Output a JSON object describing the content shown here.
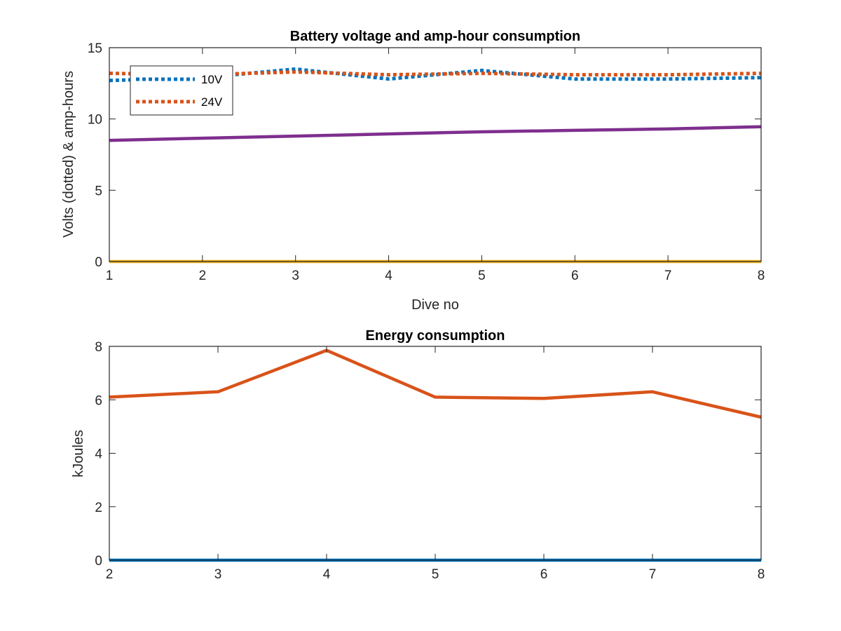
{
  "chart_data": [
    {
      "type": "line",
      "title": "Battery voltage and amp-hour consumption",
      "xlabel": "Dive no",
      "ylabel": "Volts (dotted) & amp-hours",
      "xlim": [
        1,
        8
      ],
      "ylim": [
        0,
        15
      ],
      "xticks": [
        1,
        2,
        3,
        4,
        5,
        6,
        7,
        8
      ],
      "yticks": [
        0,
        5,
        10,
        15
      ],
      "grid": false,
      "legend_position": "top-left",
      "x": [
        1,
        2,
        3,
        4,
        5,
        6,
        7,
        8
      ],
      "series": [
        {
          "name": "10V",
          "style": "dotted",
          "color": "#0072BD",
          "values": [
            12.7,
            12.9,
            13.5,
            12.8,
            13.4,
            12.8,
            12.8,
            12.9
          ]
        },
        {
          "name": "24V",
          "style": "dotted",
          "color": "#D95319",
          "values": [
            13.2,
            13.1,
            13.3,
            13.1,
            13.2,
            13.1,
            13.1,
            13.2
          ]
        },
        {
          "style": "solid",
          "color": "#7E2F8E",
          "values": [
            8.5,
            8.65,
            8.8,
            8.95,
            9.1,
            9.2,
            9.3,
            9.45
          ]
        },
        {
          "style": "solid",
          "color": "#EDB120",
          "values": [
            0,
            0,
            0,
            0,
            0,
            0,
            0,
            0
          ]
        }
      ]
    },
    {
      "type": "line",
      "title": "Energy consumption",
      "xlabel": "",
      "ylabel": "kJoules",
      "xlim": [
        2,
        8
      ],
      "ylim": [
        0,
        8
      ],
      "xticks": [
        2,
        3,
        4,
        5,
        6,
        7,
        8
      ],
      "yticks": [
        0,
        2,
        4,
        6,
        8
      ],
      "grid": false,
      "x": [
        2,
        3,
        4,
        5,
        6,
        7,
        8
      ],
      "series": [
        {
          "style": "solid",
          "color": "#D95319",
          "values": [
            6.1,
            6.3,
            7.85,
            6.1,
            6.05,
            6.3,
            5.35
          ]
        },
        {
          "style": "solid",
          "color": "#0072BD",
          "values": [
            0,
            0,
            0,
            0,
            0,
            0,
            0
          ]
        }
      ]
    }
  ]
}
